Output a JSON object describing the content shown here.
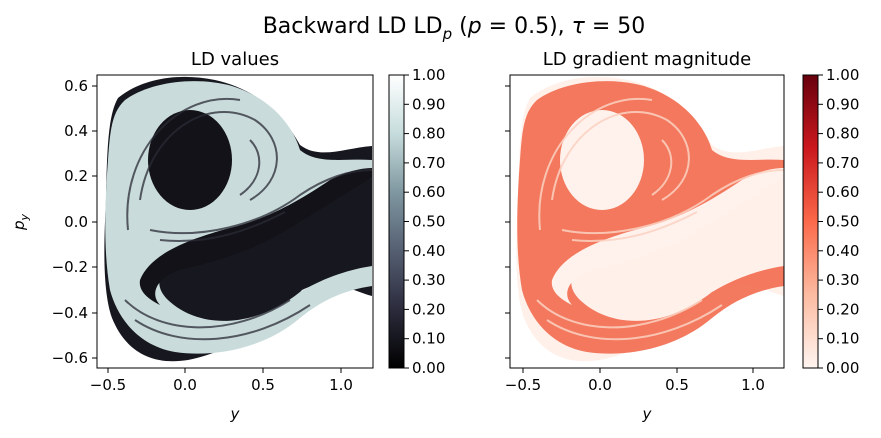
{
  "figure": {
    "suptitle": "Backward LD LD_p (p = 0.5), τ = 50",
    "suptitle_parts": {
      "pre": "Backward LD LD",
      "sub": "p",
      "mid1": " (",
      "pvar": "p",
      "mid2": " = 0.5), ",
      "tauvar": "τ",
      "post": " = 50"
    }
  },
  "chart_data": [
    {
      "type": "heatmap",
      "title": "LD values",
      "xlabel": "y",
      "ylabel_var": "p",
      "ylabel_sub": "y",
      "xlim": [
        -0.6,
        1.2
      ],
      "ylim": [
        -0.65,
        0.65
      ],
      "xticks": [
        -0.5,
        0.0,
        0.5,
        1.0
      ],
      "xtick_labels": [
        "−0.5",
        "0.0",
        "0.5",
        "1.0"
      ],
      "yticks": [
        0.6,
        0.4,
        0.2,
        0.0,
        -0.2,
        -0.4,
        -0.6
      ],
      "ytick_labels": [
        "0.6",
        "0.4",
        "0.2",
        "0.0",
        "−0.2",
        "−0.4",
        "−0.6"
      ],
      "colormap": "bone",
      "colormap_stops": [
        "#000000",
        "#2b2b3c",
        "#555f72",
        "#7f97a0",
        "#c6dcdc",
        "#ffffff"
      ],
      "colorbar": {
        "range": [
          0.0,
          1.0
        ],
        "ticks": [
          "0.00",
          "0.10",
          "0.20",
          "0.30",
          "0.40",
          "0.50",
          "0.60",
          "0.70",
          "0.80",
          "0.90",
          "1.00"
        ]
      },
      "grid": false
    },
    {
      "type": "heatmap",
      "title": "LD gradient magnitude",
      "xlabel": "y",
      "xlim": [
        -0.6,
        1.2
      ],
      "ylim": [
        -0.65,
        0.65
      ],
      "xticks": [
        -0.5,
        0.0,
        0.5,
        1.0
      ],
      "xtick_labels": [
        "−0.5",
        "0.0",
        "0.5",
        "1.0"
      ],
      "colormap": "Reds",
      "colormap_stops": [
        "#fff5f0",
        "#fcbba1",
        "#fb6a4a",
        "#cb181d",
        "#67000d"
      ],
      "colorbar": {
        "range": [
          0.0,
          1.0
        ],
        "ticks": [
          "0.00",
          "0.10",
          "0.20",
          "0.30",
          "0.40",
          "0.50",
          "0.60",
          "0.70",
          "0.80",
          "0.90",
          "1.00"
        ]
      },
      "grid": false
    }
  ]
}
